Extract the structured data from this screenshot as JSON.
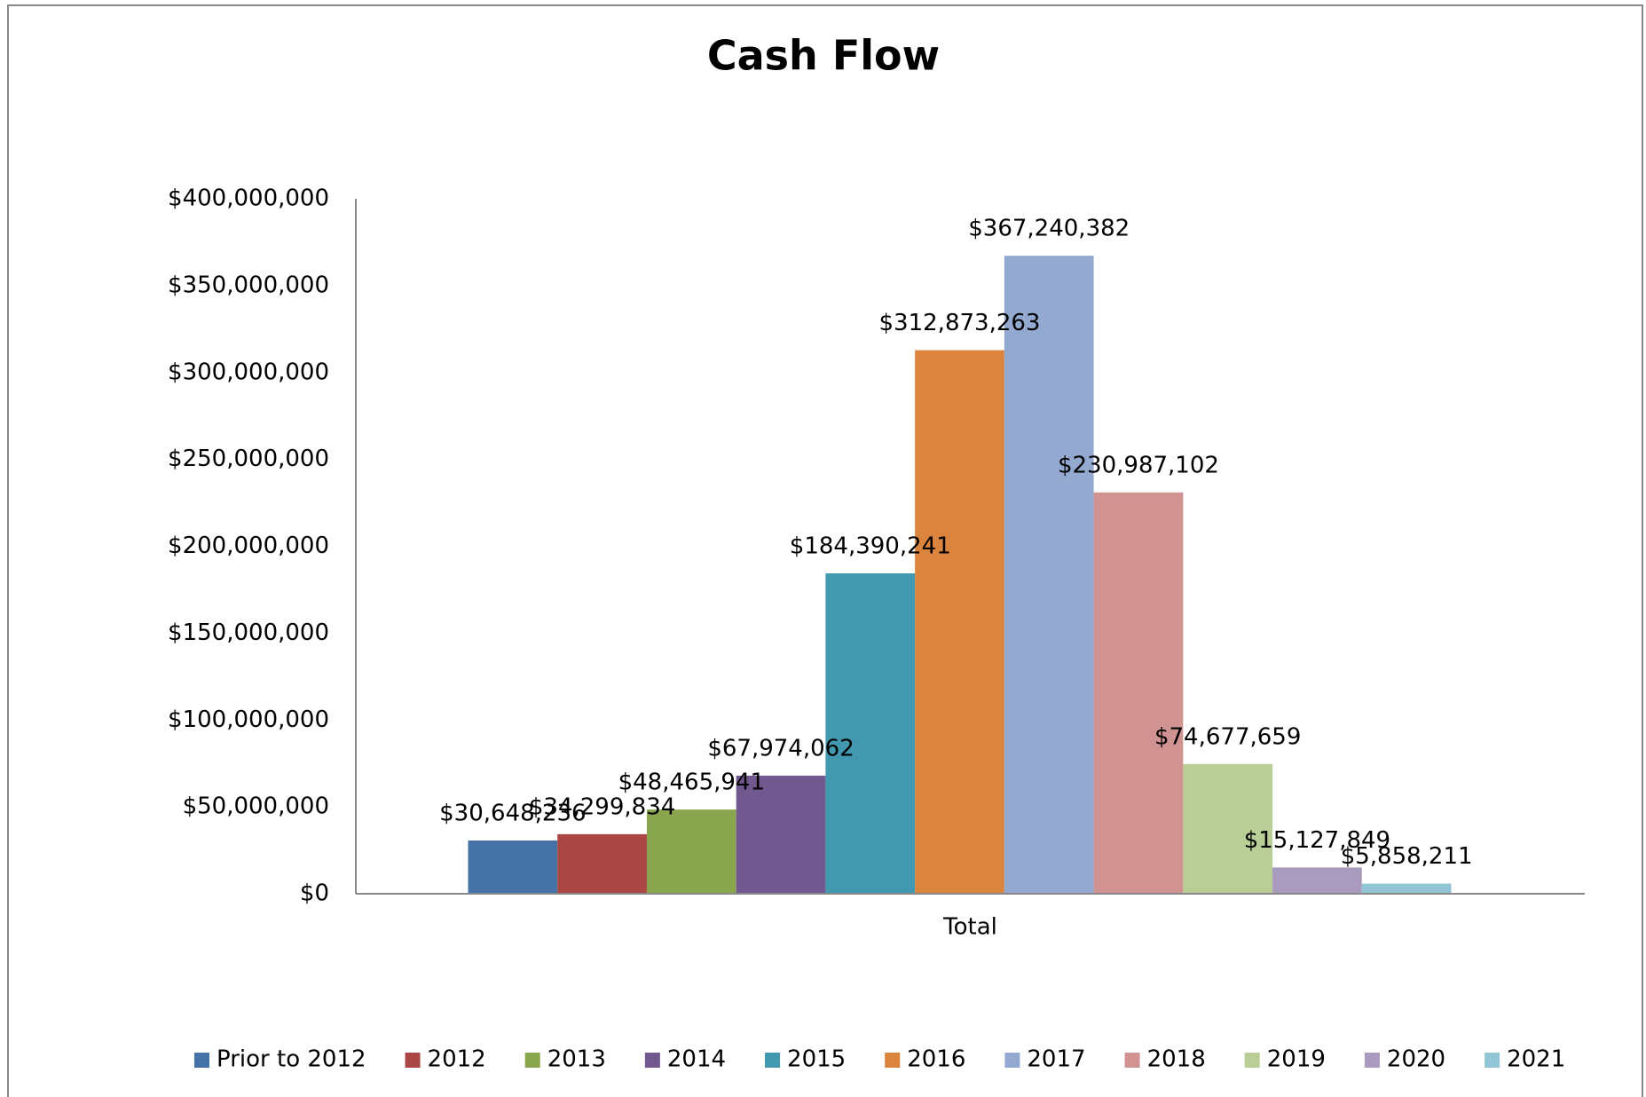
{
  "chart_data": {
    "type": "bar",
    "title": "Cash Flow",
    "categories": [
      "Total"
    ],
    "ylim": [
      0,
      400000000
    ],
    "yticks": [
      {
        "value": 0,
        "label": "$0"
      },
      {
        "value": 50000000,
        "label": "$50,000,000"
      },
      {
        "value": 100000000,
        "label": "$100,000,000"
      },
      {
        "value": 150000000,
        "label": "$150,000,000"
      },
      {
        "value": 200000000,
        "label": "$200,000,000"
      },
      {
        "value": 250000000,
        "label": "$250,000,000"
      },
      {
        "value": 300000000,
        "label": "$300,000,000"
      },
      {
        "value": 350000000,
        "label": "$350,000,000"
      },
      {
        "value": 400000000,
        "label": "$400,000,000"
      }
    ],
    "grid": false,
    "legend": "bottom",
    "series": [
      {
        "name": "Prior to 2012",
        "color": "#4572A7",
        "values": [
          30648236
        ],
        "value_labels": [
          "$30,648,236"
        ]
      },
      {
        "name": "2012",
        "color": "#AA4643",
        "values": [
          34299834
        ],
        "value_labels": [
          "$34,299,834"
        ]
      },
      {
        "name": "2013",
        "color": "#89A54E",
        "values": [
          48465941
        ],
        "value_labels": [
          "$48,465,941"
        ]
      },
      {
        "name": "2014",
        "color": "#71588F",
        "values": [
          67974062
        ],
        "value_labels": [
          "$67,974,062"
        ]
      },
      {
        "name": "2015",
        "color": "#4198AF",
        "values": [
          184390241
        ],
        "value_labels": [
          "$184,390,241"
        ]
      },
      {
        "name": "2016",
        "color": "#DB843D",
        "values": [
          312873263
        ],
        "value_labels": [
          "$312,873,263"
        ]
      },
      {
        "name": "2017",
        "color": "#93A9CF",
        "values": [
          367240382
        ],
        "value_labels": [
          "$367,240,382"
        ]
      },
      {
        "name": "2018",
        "color": "#D19392",
        "values": [
          230987102
        ],
        "value_labels": [
          "$230,987,102"
        ]
      },
      {
        "name": "2019",
        "color": "#B9CD96",
        "values": [
          74677659
        ],
        "value_labels": [
          "$74,677,659"
        ]
      },
      {
        "name": "2020",
        "color": "#A99BBD",
        "values": [
          15127849
        ],
        "value_labels": [
          "$15,127,849"
        ]
      },
      {
        "name": "2021",
        "color": "#92C5D5",
        "values": [
          5858211
        ],
        "value_labels": [
          "$5,858,211"
        ]
      }
    ]
  }
}
